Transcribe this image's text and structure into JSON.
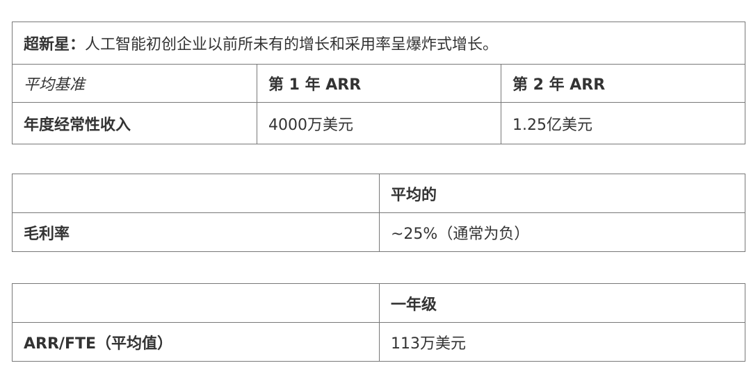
{
  "table1": {
    "title_bold": "超新星：",
    "title_rest": "人工智能初创企业以前所未有的增长和采用率呈爆炸式增长。",
    "header": [
      "平均基准",
      "第 1 年 ARR",
      "第 2 年 ARR"
    ],
    "row": [
      "年度经常性收入",
      "4000万美元",
      "1.25亿美元"
    ]
  },
  "table2": {
    "header": [
      "",
      "平均的"
    ],
    "row": [
      "毛利率",
      "~25%（通常为负）"
    ]
  },
  "table3": {
    "header": [
      "",
      "一年级"
    ],
    "row": [
      "ARR/FTE（平均值）",
      "113万美元"
    ]
  }
}
